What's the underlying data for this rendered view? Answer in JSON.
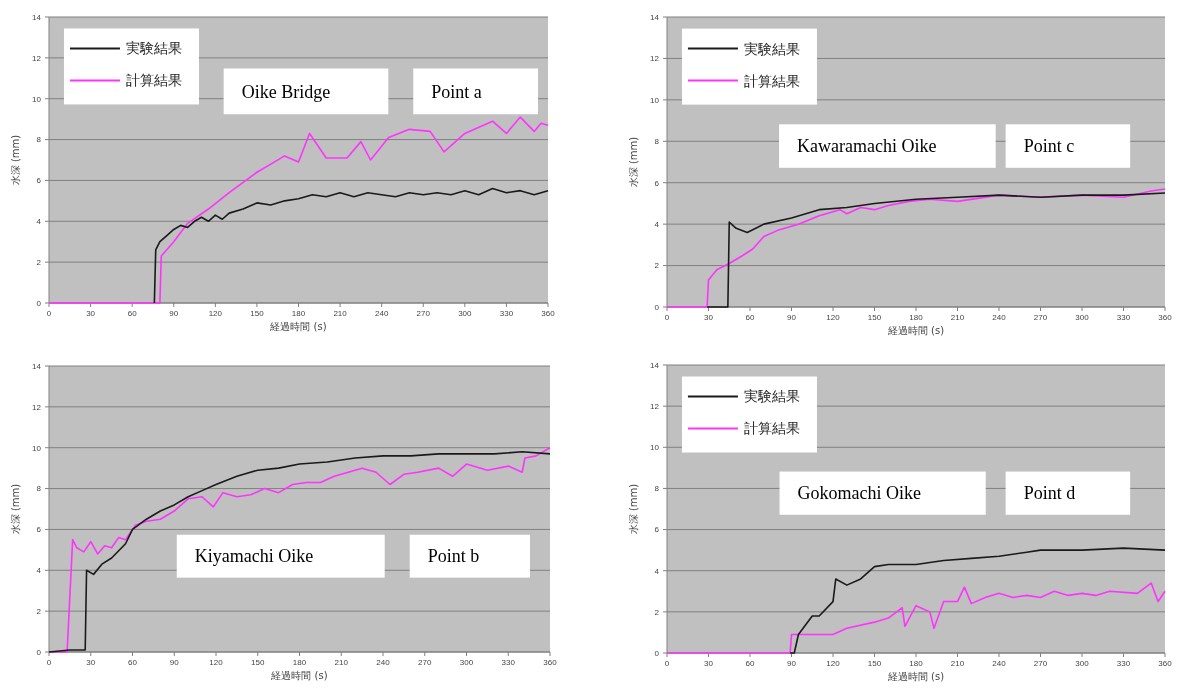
{
  "chart_data": [
    {
      "type": "line",
      "xlabel": "経過時間 (s)",
      "ylabel": "水深 (mm)",
      "annotations": [
        "Oike Bridge",
        "Point a"
      ],
      "xlim": [
        0,
        360
      ],
      "xticks": [
        0,
        30,
        60,
        90,
        120,
        150,
        180,
        210,
        240,
        270,
        300,
        330,
        360
      ],
      "ylim": [
        0,
        14
      ],
      "yticks": [
        0,
        2,
        4,
        6,
        8,
        10,
        12,
        14
      ],
      "grid": "y",
      "legend": "top left",
      "series": [
        {
          "name": "実験結果",
          "color": "#1a1a1a",
          "x": [
            76,
            77,
            80,
            85,
            90,
            95,
            100,
            105,
            110,
            115,
            120,
            125,
            130,
            140,
            150,
            160,
            170,
            180,
            190,
            200,
            210,
            220,
            230,
            240,
            250,
            260,
            270,
            280,
            290,
            300,
            310,
            320,
            330,
            340,
            350,
            360
          ],
          "values": [
            0,
            2.6,
            3.0,
            3.3,
            3.6,
            3.8,
            3.7,
            4.0,
            4.2,
            4.0,
            4.3,
            4.1,
            4.4,
            4.6,
            4.9,
            4.8,
            5.0,
            5.1,
            5.3,
            5.2,
            5.4,
            5.2,
            5.4,
            5.3,
            5.2,
            5.4,
            5.3,
            5.4,
            5.3,
            5.5,
            5.3,
            5.6,
            5.4,
            5.5,
            5.3,
            5.5
          ]
        },
        {
          "name": "計算結果",
          "color": "#ff33ff",
          "x": [
            0,
            80,
            81,
            90,
            100,
            115,
            130,
            150,
            160,
            170,
            180,
            188,
            200,
            215,
            225,
            232,
            245,
            260,
            275,
            285,
            300,
            320,
            330,
            340,
            350,
            355,
            360
          ],
          "values": [
            0,
            0,
            2.3,
            3.0,
            3.9,
            4.6,
            5.4,
            6.4,
            6.8,
            7.2,
            6.9,
            8.3,
            7.1,
            7.1,
            7.9,
            7.0,
            8.1,
            8.5,
            8.4,
            7.4,
            8.3,
            8.9,
            8.3,
            9.1,
            8.4,
            8.8,
            8.7
          ]
        }
      ]
    },
    {
      "type": "line",
      "xlabel": "経過時間 (s)",
      "ylabel": "水深 (mm)",
      "annotations": [
        "Kawaramachi Oike",
        "Point c"
      ],
      "xlim": [
        0,
        360
      ],
      "xticks": [
        0,
        30,
        60,
        90,
        120,
        150,
        180,
        210,
        240,
        270,
        300,
        330,
        360
      ],
      "ylim": [
        0,
        14
      ],
      "yticks": [
        0,
        2,
        4,
        6,
        8,
        10,
        12,
        14
      ],
      "grid": "y",
      "legend": "top left",
      "series": [
        {
          "name": "実験結果",
          "color": "#1a1a1a",
          "x": [
            29,
            44,
            45,
            50,
            58,
            70,
            90,
            110,
            130,
            150,
            180,
            210,
            240,
            270,
            300,
            330,
            360
          ],
          "values": [
            0,
            0,
            4.1,
            3.8,
            3.6,
            4.0,
            4.3,
            4.7,
            4.8,
            5.0,
            5.2,
            5.3,
            5.4,
            5.3,
            5.4,
            5.4,
            5.5
          ]
        },
        {
          "name": "計算結果",
          "color": "#ff33ff",
          "x": [
            0,
            29,
            30,
            36,
            45,
            55,
            62,
            70,
            80,
            95,
            110,
            125,
            130,
            140,
            150,
            160,
            175,
            190,
            210,
            240,
            270,
            300,
            330,
            350,
            360
          ],
          "values": [
            0,
            0,
            1.3,
            1.8,
            2.1,
            2.5,
            2.8,
            3.4,
            3.7,
            4.0,
            4.4,
            4.7,
            4.5,
            4.8,
            4.7,
            4.9,
            5.1,
            5.2,
            5.1,
            5.4,
            5.3,
            5.4,
            5.3,
            5.6,
            5.7
          ]
        }
      ]
    },
    {
      "type": "line",
      "xlabel": "経過時間 (s)",
      "ylabel": "水深 (mm)",
      "annotations": [
        "Kiyamachi Oike",
        "Point b"
      ],
      "xlim": [
        0,
        360
      ],
      "xticks": [
        0,
        30,
        60,
        90,
        120,
        150,
        180,
        210,
        240,
        270,
        300,
        330,
        360
      ],
      "ylim": [
        0,
        14
      ],
      "yticks": [
        0,
        2,
        4,
        6,
        8,
        10,
        12,
        14
      ],
      "grid": "y",
      "series": [
        {
          "color": "#1a1a1a",
          "x": [
            0,
            15,
            26,
            27,
            32,
            38,
            45,
            55,
            60,
            70,
            80,
            90,
            100,
            110,
            120,
            135,
            150,
            165,
            180,
            200,
            220,
            240,
            260,
            280,
            300,
            320,
            340,
            360
          ],
          "values": [
            0,
            0.1,
            0.1,
            4.0,
            3.8,
            4.3,
            4.6,
            5.3,
            6.0,
            6.5,
            6.9,
            7.2,
            7.6,
            7.9,
            8.2,
            8.6,
            8.9,
            9.0,
            9.2,
            9.3,
            9.5,
            9.6,
            9.6,
            9.7,
            9.7,
            9.7,
            9.8,
            9.7
          ]
        },
        {
          "color": "#ff33ff",
          "x": [
            0,
            13,
            17,
            20,
            25,
            30,
            35,
            40,
            45,
            50,
            55,
            62,
            70,
            80,
            90,
            100,
            110,
            118,
            125,
            135,
            145,
            155,
            165,
            175,
            185,
            195,
            205,
            215,
            225,
            235,
            245,
            255,
            265,
            280,
            290,
            300,
            315,
            330,
            340,
            342,
            350,
            360
          ],
          "values": [
            0,
            0,
            5.5,
            5.1,
            4.9,
            5.4,
            4.8,
            5.2,
            5.1,
            5.6,
            5.5,
            6.2,
            6.4,
            6.5,
            6.9,
            7.5,
            7.6,
            7.1,
            7.8,
            7.6,
            7.7,
            8.0,
            7.8,
            8.2,
            8.3,
            8.3,
            8.6,
            8.8,
            9.0,
            8.8,
            8.2,
            8.7,
            8.8,
            9.0,
            8.6,
            9.2,
            8.9,
            9.1,
            8.8,
            9.5,
            9.6,
            10.0
          ]
        }
      ]
    },
    {
      "type": "line",
      "xlabel": "経過時間 (s)",
      "ylabel": "水深 (mm)",
      "annotations": [
        "Gokomachi Oike",
        "Point d"
      ],
      "xlim": [
        0,
        360
      ],
      "xticks": [
        0,
        30,
        60,
        90,
        120,
        150,
        180,
        210,
        240,
        270,
        300,
        330,
        360
      ],
      "ylim": [
        0,
        14
      ],
      "yticks": [
        0,
        2,
        4,
        6,
        8,
        10,
        12,
        14
      ],
      "grid": "y",
      "legend": "top left",
      "series": [
        {
          "name": "実験結果",
          "color": "#1a1a1a",
          "x": [
            89,
            92,
            95,
            105,
            110,
            120,
            122,
            130,
            140,
            150,
            160,
            180,
            200,
            220,
            240,
            260,
            270,
            300,
            330,
            360
          ],
          "values": [
            0,
            0,
            0.9,
            1.8,
            1.8,
            2.5,
            3.6,
            3.3,
            3.6,
            4.2,
            4.3,
            4.3,
            4.5,
            4.6,
            4.7,
            4.9,
            5.0,
            5.0,
            5.1,
            5.0
          ]
        },
        {
          "name": "計算結果",
          "color": "#ff33ff",
          "x": [
            0,
            89,
            90,
            100,
            120,
            130,
            150,
            160,
            170,
            172,
            180,
            190,
            193,
            200,
            210,
            215,
            220,
            230,
            240,
            250,
            260,
            270,
            280,
            290,
            300,
            310,
            320,
            340,
            350,
            355,
            360
          ],
          "values": [
            0,
            0,
            0.9,
            0.9,
            0.9,
            1.2,
            1.5,
            1.7,
            2.2,
            1.3,
            2.3,
            2.0,
            1.2,
            2.5,
            2.5,
            3.2,
            2.4,
            2.7,
            2.9,
            2.7,
            2.8,
            2.7,
            3.0,
            2.8,
            2.9,
            2.8,
            3.0,
            2.9,
            3.4,
            2.5,
            3.0
          ]
        }
      ]
    }
  ]
}
